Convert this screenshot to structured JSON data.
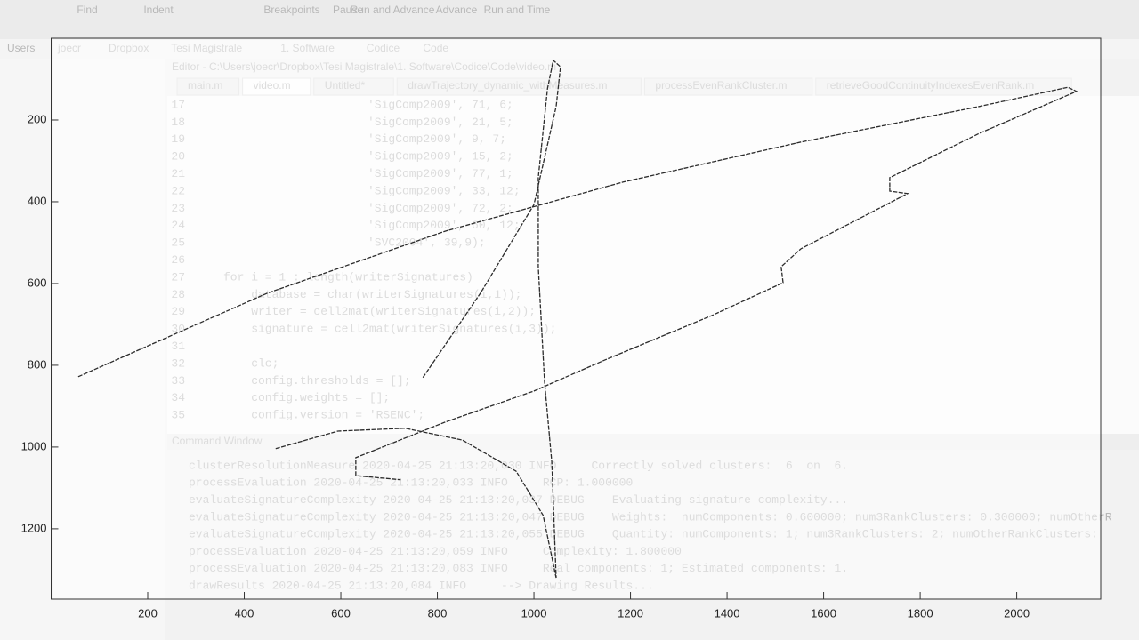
{
  "toolbar": [
    "Find",
    "Indent",
    "Breakpoints",
    "Pause",
    "Run and Advance",
    "Advance",
    "Run and Time"
  ],
  "breadcrumb": [
    "Users",
    "joecr",
    "Dropbox",
    "Tesi Magistrale",
    "1. Software",
    "Codice",
    "Code"
  ],
  "editor_title": "Editor - C:\\Users\\joecr\\Dropbox\\Tesi Magistrale\\1. Software\\Codice\\Code\\video.m",
  "tabs": [
    "main.m",
    "video.m",
    "Untitled*",
    "drawTrajectory_dynamic_withMeasures.m",
    "processEvenRankCluster.m",
    "retrieveGoodContinuityIndexesEvenRank.m"
  ],
  "code": [
    {
      "n": "17",
      "text": "'SigComp2009', 71, 6;"
    },
    {
      "n": "18",
      "text": "'SigComp2009', 21, 5;"
    },
    {
      "n": "19",
      "text": "'SigComp2009', 9, 7;"
    },
    {
      "n": "20",
      "text": "'SigComp2009', 15, 2;"
    },
    {
      "n": "21",
      "text": "'SigComp2009', 77, 1;"
    },
    {
      "n": "22",
      "text": "'SigComp2009', 33, 12;"
    },
    {
      "n": "23",
      "text": "'SigComp2009', 72, 2;"
    },
    {
      "n": "24",
      "text": "'SigComp2009', 60, 12;"
    },
    {
      "n": "25",
      "text": "'SVC2004', 39,9);"
    },
    {
      "n": "26"
    },
    {
      "n": "27",
      "text": "for i = 1 : length(writerSignatures)"
    },
    {
      "n": "28",
      "text": "    database = char(writerSignatures(i,1));"
    },
    {
      "n": "29",
      "text": "    writer = cell2mat(writerSignatures(i,2));"
    },
    {
      "n": "30",
      "text": "    signature = cell2mat(writerSignatures(i,3));"
    },
    {
      "n": "31"
    },
    {
      "n": "32",
      "text": "    clc;"
    },
    {
      "n": "33",
      "text": "    config.thresholds = [];"
    },
    {
      "n": "34",
      "text": "    config.weights = [];"
    },
    {
      "n": "35",
      "text": "    config.version = 'RSENC';"
    }
  ],
  "command_window_title": "Command Window",
  "command": [
    "clusterResolutionMeasure 2020-04-25 21:13:20,030 INFO     Correctly solved clusters:  6  on  6.",
    "processEvaluation 2020-04-25 21:13:20,033 INFO     RCP: 1.000000",
    "evaluateSignatureComplexity 2020-04-25 21:13:20,037 DEBUG    Evaluating signature complexity...",
    "evaluateSignatureComplexity 2020-04-25 21:13:20,047 DEBUG    Weights:  numComponents: 0.600000; num3RankClusters: 0.300000; numOtherR",
    "evaluateSignatureComplexity 2020-04-25 21:13:20,055 DEBUG    Quantity: numComponents: 1; num3RankClusters: 2; numOtherRankClusters: ",
    "processEvaluation 2020-04-25 21:13:20,059 INFO     Complexity: 1.800000",
    "processEvaluation 2020-04-25 21:13:20,083 INFO     Real components: 1; Estimated components: 1.",
    "drawResults 2020-04-25 21:13:20,084 INFO     --> Drawing Results..."
  ],
  "chart_data": {
    "type": "line",
    "x": [
      56,
      447,
      816,
      1184,
      1553,
      1922,
      2106,
      2124,
      1922,
      1737,
      1737,
      1774,
      1553,
      1512,
      1516,
      1369,
      1147,
      1000,
      816,
      631,
      631,
      724,
      null,
      770,
      889,
      1000,
      1046,
      1055,
      1040,
      1028,
      1009,
      1009,
      1022,
      1037,
      1046,
      null,
      465,
      594,
      733,
      852,
      963,
      1019,
      1046
    ],
    "series": [
      {
        "color": "#2b2b2b",
        "values": [
          828,
          624,
          472,
          352,
          254,
          167,
          120,
          130,
          233,
          341,
          374,
          380,
          515,
          559,
          598,
          678,
          787,
          863,
          939,
          1026,
          1070,
          1080,
          null,
          830,
          624,
          407,
          167,
          70,
          54,
          124,
          341,
          559,
          841,
          1037,
          1320,
          null,
          1004,
          961,
          954,
          983,
          1059,
          1167,
          1320
        ]
      }
    ],
    "xlim": [
      0,
      2174
    ],
    "ylim": [
      0,
      1372
    ],
    "y_reversed": true,
    "xticks": [
      200,
      400,
      600,
      800,
      1000,
      1200,
      1400,
      1600,
      1800,
      2000
    ],
    "yticks": [
      200,
      400,
      600,
      800,
      1000,
      1200
    ]
  }
}
